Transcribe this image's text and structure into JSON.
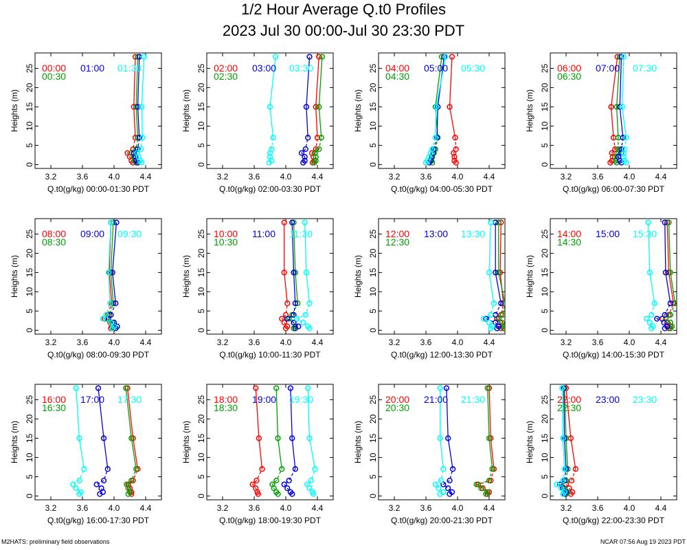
{
  "header": {
    "title": "1/2 Hour Average Q.t0 Profiles",
    "subtitle": "2023 Jul 30 00:00-Jul 30 23:30 PDT"
  },
  "footer": {
    "left": "M2HATS: preliminary field observations",
    "right": "NCAR 07:56 Aug 19 2023 PDT"
  },
  "colors": {
    "first": "#ff0000",
    "second": "#00a000",
    "third": "#0000e0",
    "fourth": "#00ffff"
  },
  "chart_data": {
    "type": "line",
    "ylabel": "Heights (m)",
    "xlim": [
      3.0,
      4.6
    ],
    "ylim": [
      -1,
      29
    ],
    "x_ticks": [
      "3.2",
      "3.6",
      "4.0",
      "4.4"
    ],
    "y_ticks": [
      "0",
      "5",
      "10",
      "15",
      "20",
      "25"
    ],
    "heights": [
      0.5,
      1,
      2,
      3,
      4,
      7,
      15,
      28
    ],
    "panels": [
      {
        "xlabel": "Q.t0(g/kg) 00:00-01:30 PDT",
        "series": [
          {
            "name": "00:00",
            "values": [
              4.24,
              4.22,
              4.2,
              4.17,
              4.24,
              4.27,
              4.25,
              4.27
            ]
          },
          {
            "name": "00:30",
            "values": [
              4.28,
              4.26,
              4.25,
              4.22,
              4.28,
              4.3,
              4.28,
              4.3
            ]
          },
          {
            "name": "01:00",
            "values": [
              4.3,
              4.28,
              4.27,
              4.25,
              4.3,
              4.32,
              4.3,
              4.32
            ]
          },
          {
            "name": "01:30",
            "values": [
              4.35,
              4.33,
              4.31,
              4.29,
              4.34,
              4.36,
              4.35,
              4.38
            ]
          }
        ]
      },
      {
        "xlabel": "Q.t0(g/kg) 02:00-03:30 PDT",
        "series": [
          {
            "name": "02:00",
            "values": [
              4.34,
              4.36,
              4.35,
              4.33,
              4.38,
              4.4,
              4.38,
              4.42
            ]
          },
          {
            "name": "02:30",
            "values": [
              4.36,
              4.38,
              4.38,
              4.37,
              4.42,
              4.45,
              4.42,
              4.46
            ]
          },
          {
            "name": "03:00",
            "values": [
              4.22,
              4.24,
              4.24,
              4.2,
              4.25,
              4.28,
              4.26,
              4.3
            ]
          },
          {
            "name": "03:30",
            "values": [
              3.79,
              3.82,
              3.8,
              3.8,
              3.82,
              3.84,
              3.8,
              3.87
            ]
          }
        ]
      },
      {
        "xlabel": "Q.t0(g/kg) 04:00-05:30 PDT",
        "series": [
          {
            "name": "04:00",
            "values": [
              3.98,
              3.96,
              3.96,
              3.95,
              3.98,
              3.97,
              3.9,
              3.93
            ]
          },
          {
            "name": "04:30",
            "values": [
              3.68,
              3.67,
              3.68,
              3.7,
              3.72,
              3.75,
              3.72,
              3.8
            ]
          },
          {
            "name": "05:00",
            "values": [
              3.64,
              3.66,
              3.67,
              3.69,
              3.7,
              3.74,
              3.75,
              3.83
            ]
          },
          {
            "name": "05:30",
            "values": [
              3.6,
              3.62,
              3.64,
              3.66,
              3.68,
              3.72,
              3.73,
              3.85
            ]
          }
        ]
      },
      {
        "xlabel": "Q.t0(g/kg) 06:00-07:30 PDT",
        "series": [
          {
            "name": "06:00",
            "values": [
              3.76,
              3.78,
              3.79,
              3.78,
              3.82,
              3.8,
              3.77,
              3.85
            ]
          },
          {
            "name": "06:30",
            "values": [
              3.84,
              3.83,
              3.82,
              3.86,
              3.86,
              3.86,
              3.84,
              3.88
            ]
          },
          {
            "name": "07:00",
            "values": [
              3.9,
              3.88,
              3.86,
              3.9,
              3.9,
              3.92,
              3.88,
              3.9
            ]
          },
          {
            "name": "07:30",
            "values": [
              3.96,
              3.94,
              3.93,
              3.93,
              3.94,
              3.96,
              3.91,
              3.93
            ]
          }
        ]
      },
      {
        "xlabel": "Q.t0(g/kg) 08:00-09:30 PDT",
        "series": [
          {
            "name": "08:00",
            "values": [
              3.96,
              3.97,
              3.95,
              3.88,
              3.92,
              3.97,
              3.94,
              3.96
            ]
          },
          {
            "name": "08:30",
            "values": [
              3.99,
              4.0,
              3.98,
              3.91,
              3.94,
              3.99,
              3.96,
              3.99
            ]
          },
          {
            "name": "09:00",
            "values": [
              4.02,
              4.04,
              4.0,
              3.93,
              3.96,
              4.02,
              3.98,
              4.03
            ]
          },
          {
            "name": "09:30",
            "values": [
              3.98,
              4.0,
              3.96,
              3.86,
              3.9,
              3.95,
              3.93,
              3.96
            ]
          }
        ]
      },
      {
        "xlabel": "Q.t0(g/kg) 10:00-11:30 PDT",
        "series": [
          {
            "name": "10:00",
            "values": [
              4.0,
              4.02,
              3.98,
              3.95,
              4.0,
              4.02,
              3.98,
              3.98
            ]
          },
          {
            "name": "10:30",
            "values": [
              4.1,
              4.12,
              4.1,
              4.04,
              4.08,
              4.15,
              4.12,
              4.1
            ]
          },
          {
            "name": "11:00",
            "values": [
              4.12,
              4.16,
              4.1,
              4.02,
              4.1,
              4.12,
              4.1,
              4.08
            ]
          },
          {
            "name": "11:30",
            "values": [
              4.3,
              4.28,
              4.22,
              4.14,
              4.25,
              4.3,
              4.26,
              4.24
            ]
          }
        ]
      },
      {
        "xlabel": "Q.t0(g/kg) 12:00-13:30 PDT",
        "series": [
          {
            "name": "12:00",
            "values": [
              4.55,
              4.57,
              4.54,
              4.5,
              4.55,
              4.58,
              4.54,
              4.55
            ]
          },
          {
            "name": "12:30",
            "values": [
              4.58,
              4.6,
              4.56,
              4.52,
              4.57,
              4.6,
              4.52,
              4.52
            ]
          },
          {
            "name": "13:00",
            "values": [
              4.5,
              4.52,
              4.48,
              4.36,
              4.48,
              4.55,
              4.48,
              4.48
            ]
          },
          {
            "name": "13:30",
            "values": [
              4.42,
              4.44,
              4.4,
              4.33,
              4.42,
              4.46,
              4.4,
              4.42
            ]
          }
        ]
      },
      {
        "xlabel": "Q.t0(g/kg) 14:00-15:30 PDT",
        "series": [
          {
            "name": "14:00",
            "values": [
              4.5,
              4.52,
              4.48,
              4.42,
              4.5,
              4.56,
              4.5,
              4.48
            ]
          },
          {
            "name": "14:30",
            "values": [
              4.52,
              4.54,
              4.52,
              4.46,
              4.52,
              4.58,
              4.52,
              4.5
            ]
          },
          {
            "name": "15:00",
            "values": [
              4.45,
              4.48,
              4.44,
              4.35,
              4.45,
              4.52,
              4.46,
              4.45
            ]
          },
          {
            "name": "15:30",
            "values": [
              4.28,
              4.3,
              4.26,
              4.22,
              4.28,
              4.32,
              4.26,
              4.24
            ]
          }
        ]
      },
      {
        "xlabel": "Q.t0(g/kg) 16:00-17:30 PDT",
        "series": [
          {
            "name": "16:00",
            "values": [
              4.22,
              4.22,
              4.2,
              4.18,
              4.24,
              4.3,
              4.24,
              4.17
            ]
          },
          {
            "name": "16:30",
            "values": [
              4.18,
              4.2,
              4.18,
              4.16,
              4.22,
              4.28,
              4.22,
              4.15
            ]
          },
          {
            "name": "17:00",
            "values": [
              3.82,
              3.86,
              3.84,
              3.78,
              3.87,
              3.92,
              3.87,
              3.8
            ]
          },
          {
            "name": "17:30",
            "values": [
              3.56,
              3.58,
              3.52,
              3.48,
              3.56,
              3.62,
              3.56,
              3.52
            ]
          }
        ]
      },
      {
        "xlabel": "Q.t0(g/kg) 18:00-19:30 PDT",
        "series": [
          {
            "name": "18:00",
            "values": [
              3.65,
              3.64,
              3.62,
              3.58,
              3.63,
              3.7,
              3.66,
              3.62
            ]
          },
          {
            "name": "18:30",
            "values": [
              3.9,
              3.88,
              3.85,
              3.83,
              3.88,
              3.95,
              3.9,
              3.88
            ]
          },
          {
            "name": "19:00",
            "values": [
              4.08,
              4.06,
              4.02,
              3.98,
              4.04,
              4.12,
              4.08,
              4.06
            ]
          },
          {
            "name": "19:30",
            "values": [
              4.35,
              4.34,
              4.3,
              4.27,
              4.32,
              4.37,
              4.3,
              4.28
            ]
          }
        ]
      },
      {
        "xlabel": "Q.t0(g/kg) 20:00-21:30 PDT",
        "series": [
          {
            "name": "20:00",
            "values": [
              4.38,
              4.4,
              4.32,
              4.26,
              4.42,
              4.46,
              4.42,
              4.4
            ]
          },
          {
            "name": "20:30",
            "values": [
              4.36,
              4.38,
              4.3,
              4.24,
              4.4,
              4.44,
              4.4,
              4.38
            ]
          },
          {
            "name": "21:00",
            "values": [
              3.9,
              3.93,
              3.88,
              3.82,
              3.9,
              3.94,
              3.88,
              3.86
            ]
          },
          {
            "name": "21:30",
            "values": [
              3.78,
              3.82,
              3.76,
              3.72,
              3.79,
              3.82,
              3.78,
              3.78
            ]
          }
        ]
      },
      {
        "xlabel": "Q.t0(g/kg) 22:00-23:30 PDT",
        "series": [
          {
            "name": "22:00",
            "values": [
              3.26,
              3.28,
              3.24,
              3.2,
              3.27,
              3.32,
              3.26,
              3.2
            ]
          },
          {
            "name": "22:30",
            "values": [
              3.2,
              3.22,
              3.18,
              3.14,
              3.2,
              3.22,
              3.2,
              3.18
            ]
          },
          {
            "name": "23:00",
            "values": [
              3.18,
              3.2,
              3.16,
              3.12,
              3.18,
              3.2,
              3.18,
              3.17
            ]
          },
          {
            "name": "23:30",
            "values": [
              3.16,
              3.18,
              3.14,
              3.08,
              3.16,
              3.18,
              3.16,
              3.15
            ]
          }
        ]
      }
    ]
  }
}
